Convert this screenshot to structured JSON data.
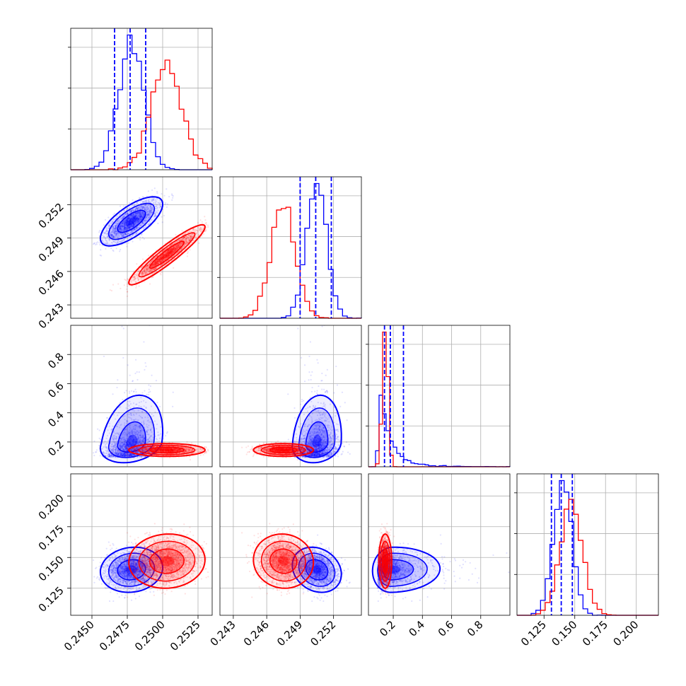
{
  "chart_data": {
    "type": "corner",
    "title": "",
    "grid": true,
    "legend": "none",
    "parameters": [
      {
        "id": "p1",
        "range": [
          0.2435,
          0.2535
        ],
        "ticks": [
          0.245,
          0.2475,
          0.25,
          0.2525
        ],
        "tick_labels": [
          "0.2450",
          "0.2475",
          "0.2500",
          "0.2525"
        ]
      },
      {
        "id": "p2",
        "range": [
          0.2418,
          0.2545
        ],
        "ticks": [
          0.243,
          0.246,
          0.249,
          0.252
        ],
        "tick_labels": [
          "0.243",
          "0.246",
          "0.249",
          "0.252"
        ]
      },
      {
        "id": "p3",
        "range": [
          0.03,
          1.0
        ],
        "ticks": [
          0.2,
          0.4,
          0.6,
          0.8
        ],
        "tick_labels": [
          "0.2",
          "0.4",
          "0.6",
          "0.8"
        ]
      },
      {
        "id": "p4",
        "range": [
          0.103,
          0.218
        ],
        "ticks": [
          0.125,
          0.15,
          0.175,
          0.2
        ],
        "tick_labels": [
          "0.125",
          "0.150",
          "0.175",
          "0.200"
        ]
      }
    ],
    "series": [
      {
        "color": "#0000ff",
        "mean": [
          0.2478,
          0.2505,
          0.19,
          0.14
        ],
        "sd": [
          0.0009,
          0.0009,
          0.09,
          0.0075
        ],
        "corr": [
          [
            1,
            0.7,
            0.25,
            0.1
          ],
          [
            0.7,
            1,
            0.15,
            -0.2
          ],
          [
            0.25,
            0.15,
            1,
            0.05
          ],
          [
            0.1,
            -0.2,
            0.05,
            1
          ]
        ],
        "skew": [
          0,
          0,
          1,
          0
        ],
        "quantile_lines": [
          [
            0.2466,
            0.2477,
            0.2488
          ],
          [
            0.249,
            0.2504,
            0.2518
          ],
          [
            0.14,
            0.18,
            0.27
          ],
          [
            0.131,
            0.139,
            0.148
          ]
        ]
      },
      {
        "color": "#ff0000",
        "mean": [
          0.2503,
          0.2475,
          0.145,
          0.147
        ],
        "sd": [
          0.0011,
          0.0011,
          0.018,
          0.009
        ],
        "corr": [
          [
            1,
            0.93,
            0,
            0.05
          ],
          [
            0.93,
            1,
            0,
            -0.05
          ],
          [
            0,
            0,
            1,
            0
          ],
          [
            0.05,
            -0.05,
            0,
            1
          ]
        ],
        "skew": [
          0,
          0,
          0,
          0
        ],
        "quantile_lines": []
      }
    ]
  }
}
